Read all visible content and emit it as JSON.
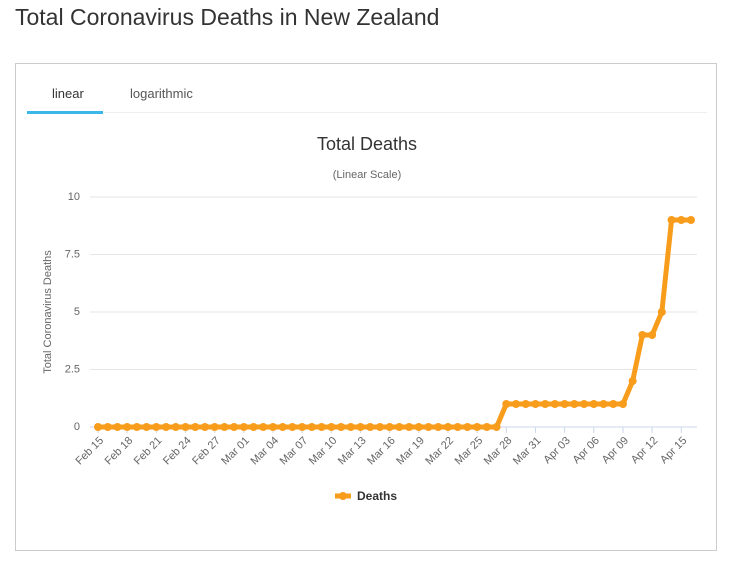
{
  "page_title": "Total Coronavirus Deaths in New Zealand",
  "tabs": [
    "linear",
    "logarithmic"
  ],
  "chart_data": {
    "type": "line",
    "title": "Total Deaths",
    "subtitle": "(Linear Scale)",
    "y_label": "Total Coronavirus Deaths",
    "categories": [
      "Feb 15",
      null,
      null,
      "Feb 18",
      null,
      null,
      "Feb 21",
      null,
      null,
      "Feb 24",
      null,
      null,
      "Feb 27",
      null,
      null,
      "Mar 01",
      null,
      null,
      "Mar 04",
      null,
      null,
      "Mar 07",
      null,
      null,
      "Mar 10",
      null,
      null,
      "Mar 13",
      null,
      null,
      "Mar 16",
      null,
      null,
      "Mar 19",
      null,
      null,
      "Mar 22",
      null,
      null,
      "Mar 25",
      null,
      null,
      "Mar 28",
      null,
      null,
      "Mar 31",
      null,
      null,
      "Apr 03",
      null,
      null,
      "Apr 06",
      null,
      null,
      "Apr 09",
      null,
      null,
      "Apr 12",
      null,
      null,
      "Apr 15",
      null
    ],
    "series": [
      {
        "name": "Deaths",
        "color": "#f89c1c",
        "values": [
          0,
          0,
          0,
          0,
          0,
          0,
          0,
          0,
          0,
          0,
          0,
          0,
          0,
          0,
          0,
          0,
          0,
          0,
          0,
          0,
          0,
          0,
          0,
          0,
          0,
          0,
          0,
          0,
          0,
          0,
          0,
          0,
          0,
          0,
          0,
          0,
          0,
          0,
          0,
          0,
          0,
          0,
          1,
          1,
          1,
          1,
          1,
          1,
          1,
          1,
          1,
          1,
          1,
          1,
          1,
          2,
          4,
          4,
          5,
          9,
          9,
          9
        ]
      }
    ],
    "ylim": [
      0,
      10
    ],
    "yticks": [
      0,
      2.5,
      5,
      7.5,
      10
    ],
    "grid": true
  }
}
